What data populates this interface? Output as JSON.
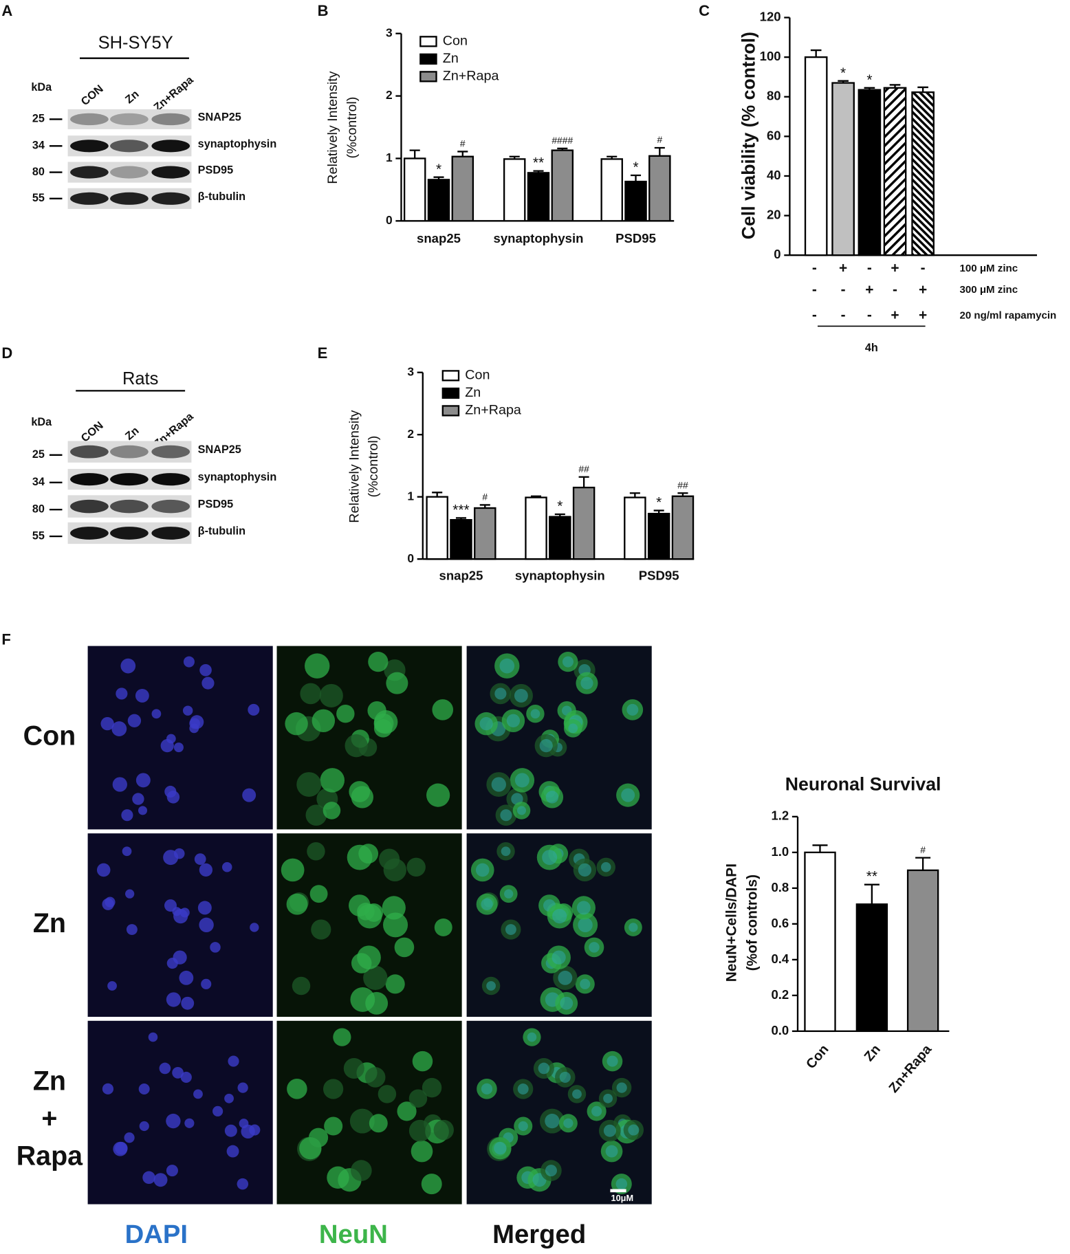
{
  "panel_labels": [
    "A",
    "B",
    "C",
    "D",
    "E",
    "F"
  ],
  "blots": [
    {
      "title": "SH-SY5Y",
      "unit": "kDa",
      "lanes": [
        "CON",
        "Zn",
        "Zn+Rapa"
      ],
      "markers": [
        "25",
        "34",
        "80",
        "55"
      ],
      "proteins": [
        "SNAP25",
        "synaptophysin",
        "PSD95",
        "β-tubulin"
      ]
    },
    {
      "title": "Rats",
      "unit": "kDa",
      "lanes": [
        "CON",
        "Zn",
        "Zn+Rapa"
      ],
      "markers": [
        "25",
        "34",
        "80",
        "55"
      ],
      "proteins": [
        "SNAP25",
        "synaptophysin",
        "PSD95",
        "β-tubulin"
      ]
    }
  ],
  "microscopy": {
    "rows": [
      [
        "Con"
      ],
      [
        "Zn"
      ],
      [
        "Zn",
        "+",
        "Rapa"
      ]
    ],
    "columns": [
      "DAPI",
      "NeuN",
      "Merged"
    ],
    "column_colors": [
      "#2a72c8",
      "#3db54a",
      "#111111"
    ],
    "scale_bar": "10μM"
  },
  "chart_data": [
    {
      "type": "bar",
      "ylabel": [
        "Relatively Intensity",
        "(%control)"
      ],
      "categories": [
        "snap25",
        "synaptophysin",
        "PSD95"
      ],
      "series": [
        {
          "name": "Con",
          "color": "#ffffff",
          "values": [
            1.0,
            0.99,
            0.99
          ],
          "errors": [
            0.13,
            0.04,
            0.04
          ]
        },
        {
          "name": "Zn",
          "color": "#000000",
          "values": [
            0.66,
            0.77,
            0.63
          ],
          "errors": [
            0.04,
            0.03,
            0.1
          ],
          "annotations": [
            "*",
            "**",
            "*"
          ]
        },
        {
          "name": "Zn+Rapa",
          "color": "#8c8c8c",
          "values": [
            1.03,
            1.13,
            1.04
          ],
          "errors": [
            0.08,
            0.03,
            0.13
          ],
          "annotations": [
            "#",
            "####",
            "#"
          ]
        }
      ],
      "ylim": [
        0,
        3
      ],
      "yticks": [
        0,
        1,
        2,
        3
      ]
    },
    {
      "type": "bar",
      "ylabel": "Cell viability (% control)",
      "categories": [
        null,
        null,
        null,
        null,
        null
      ],
      "values": [
        100,
        87,
        83.5,
        84.5,
        82.3
      ],
      "errors": [
        3.5,
        1,
        1,
        1.5,
        2.5
      ],
      "colors": [
        "#ffffff",
        "#c0c0c0",
        "#000000",
        "#ffffff",
        "#ffffff"
      ],
      "patterns": [
        null,
        null,
        null,
        "diagonal",
        "diagonal-dense"
      ],
      "annotations": [
        null,
        "*",
        "*",
        null,
        null
      ],
      "conditions": [
        {
          "label": "100 μM zinc",
          "marks": [
            "-",
            "+",
            "-",
            "+",
            "-"
          ]
        },
        {
          "label": "300 μM zinc",
          "marks": [
            "-",
            "-",
            "+",
            "-",
            "+"
          ]
        },
        {
          "label": "20 ng/ml rapamycin",
          "marks": [
            "-",
            "-",
            "-",
            "+",
            "+"
          ]
        }
      ],
      "time": "4h",
      "ylim": [
        0,
        120
      ],
      "yticks": [
        0,
        20,
        40,
        60,
        80,
        100,
        120
      ]
    },
    {
      "type": "bar",
      "ylabel": [
        "Relatively Intensity",
        "(%control)"
      ],
      "categories": [
        "snap25",
        "synaptophysin",
        "PSD95"
      ],
      "series": [
        {
          "name": "Con",
          "color": "#ffffff",
          "values": [
            1.0,
            0.99,
            0.99
          ],
          "errors": [
            0.07,
            0.02,
            0.07
          ]
        },
        {
          "name": "Zn",
          "color": "#000000",
          "values": [
            0.63,
            0.68,
            0.73
          ],
          "errors": [
            0.03,
            0.04,
            0.05
          ],
          "annotations": [
            "***",
            "*",
            "*"
          ]
        },
        {
          "name": "Zn+Rapa",
          "color": "#8c8c8c",
          "values": [
            0.82,
            1.15,
            1.01
          ],
          "errors": [
            0.05,
            0.17,
            0.05
          ],
          "annotations": [
            "#",
            "##",
            "##"
          ]
        }
      ],
      "ylim": [
        0,
        3
      ],
      "yticks": [
        0,
        1,
        2,
        3
      ]
    },
    {
      "type": "bar",
      "title": "Neuronal Survival",
      "ylabel": [
        "NeuN+Cells/DAPI",
        "(%of controls)"
      ],
      "categories": [
        "Con",
        "Zn",
        "Zn+Rapa"
      ],
      "values": [
        1.0,
        0.71,
        0.9
      ],
      "errors": [
        0.04,
        0.11,
        0.07
      ],
      "colors": [
        "#ffffff",
        "#000000",
        "#8c8c8c"
      ],
      "annotations": [
        null,
        "**",
        "#"
      ],
      "ylim": [
        0,
        1.2
      ],
      "yticks": [
        {
          "value": 0,
          "label": "0.0"
        },
        0.2,
        0.4,
        0.6,
        0.8,
        {
          "value": 1,
          "label": "1.0"
        },
        1.2
      ]
    }
  ]
}
